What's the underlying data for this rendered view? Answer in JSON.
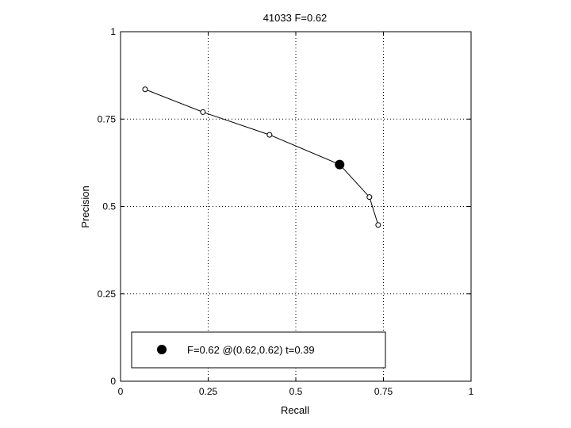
{
  "chart_data": {
    "type": "line",
    "title": "41033 F=0.62",
    "xlabel": "Recall",
    "ylabel": "Precision",
    "xlim": [
      0,
      1
    ],
    "ylim": [
      0,
      1
    ],
    "xticks": [
      0,
      0.25,
      0.5,
      0.75,
      1
    ],
    "yticks": [
      0,
      0.25,
      0.5,
      0.75,
      1
    ],
    "xtick_labels": [
      "0",
      "0.25",
      "0.5",
      "0.75",
      "1"
    ],
    "ytick_labels": [
      "0",
      "0.25",
      "0.5",
      "0.75",
      "1"
    ],
    "grid": true,
    "series": [
      {
        "marker": "open-circle",
        "color": "#000000",
        "points": [
          {
            "x": 0.07,
            "y": 0.835
          },
          {
            "x": 0.235,
            "y": 0.77
          },
          {
            "x": 0.425,
            "y": 0.705
          },
          {
            "x": 0.625,
            "y": 0.62
          },
          {
            "x": 0.71,
            "y": 0.527
          },
          {
            "x": 0.735,
            "y": 0.447
          }
        ]
      }
    ],
    "highlight": {
      "x": 0.625,
      "y": 0.62,
      "marker": "filled-circle",
      "color": "#000000"
    },
    "legend": {
      "position": "bottom-left",
      "entries": [
        "F=0.62 @(0.62,0.62) t=0.39"
      ]
    }
  }
}
